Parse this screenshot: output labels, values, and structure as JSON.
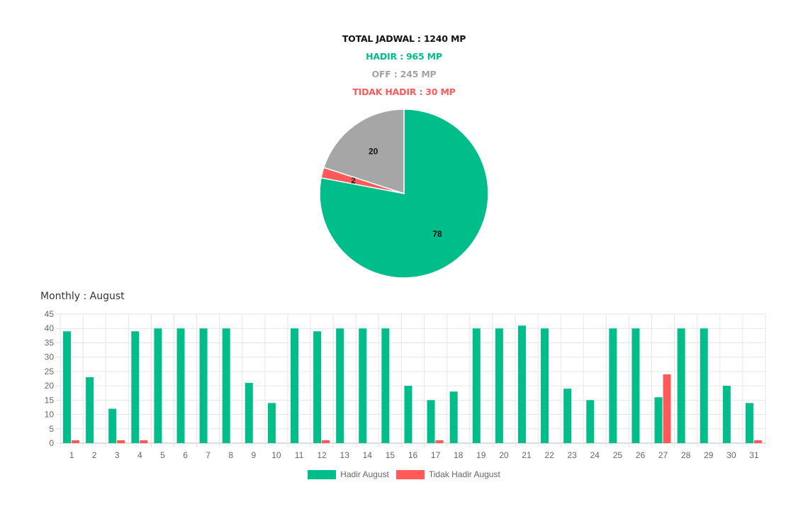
{
  "summary": {
    "total": "TOTAL JADWAL : 1240 MP",
    "hadir": "HADIR : 965 MP",
    "off": "OFF : 245 MP",
    "tidak_hadir": "TIDAK HADIR : 30 MP"
  },
  "monthly_title": "Monthly : August",
  "colors": {
    "hadir": "#00bd8a",
    "tidak_hadir": "#ff5959",
    "off": "#a6a6a6"
  },
  "chart_data": [
    {
      "type": "pie",
      "slices": [
        {
          "label": "78",
          "value": 78,
          "color": "#00bd8a"
        },
        {
          "label": "2",
          "value": 2,
          "color": "#ff5959"
        },
        {
          "label": "20",
          "value": 20,
          "color": "#a6a6a6"
        }
      ]
    },
    {
      "type": "bar",
      "categories": [
        "1",
        "2",
        "3",
        "4",
        "5",
        "6",
        "7",
        "8",
        "9",
        "10",
        "11",
        "12",
        "13",
        "14",
        "15",
        "16",
        "17",
        "18",
        "19",
        "20",
        "21",
        "22",
        "23",
        "24",
        "25",
        "26",
        "27",
        "28",
        "29",
        "30",
        "31"
      ],
      "series": [
        {
          "name": "Hadir August",
          "color": "#00bd8a",
          "values": [
            39,
            23,
            12,
            39,
            40,
            40,
            40,
            40,
            21,
            14,
            40,
            39,
            40,
            40,
            40,
            20,
            15,
            18,
            40,
            40,
            41,
            40,
            19,
            15,
            40,
            40,
            16,
            40,
            40,
            20,
            14
          ]
        },
        {
          "name": "Tidak Hadir August",
          "color": "#ff5959",
          "values": [
            1,
            0,
            1,
            1,
            0,
            0,
            0,
            0,
            0,
            0,
            0,
            1,
            0,
            0,
            0,
            0,
            1,
            0,
            0,
            0,
            0,
            0,
            0,
            0,
            0,
            0,
            24,
            0,
            0,
            0,
            1
          ]
        }
      ],
      "ylim": [
        0,
        45
      ],
      "yticks": [
        0,
        5,
        10,
        15,
        20,
        25,
        30,
        35,
        40,
        45
      ],
      "grid": true,
      "legend": "bottom"
    }
  ]
}
